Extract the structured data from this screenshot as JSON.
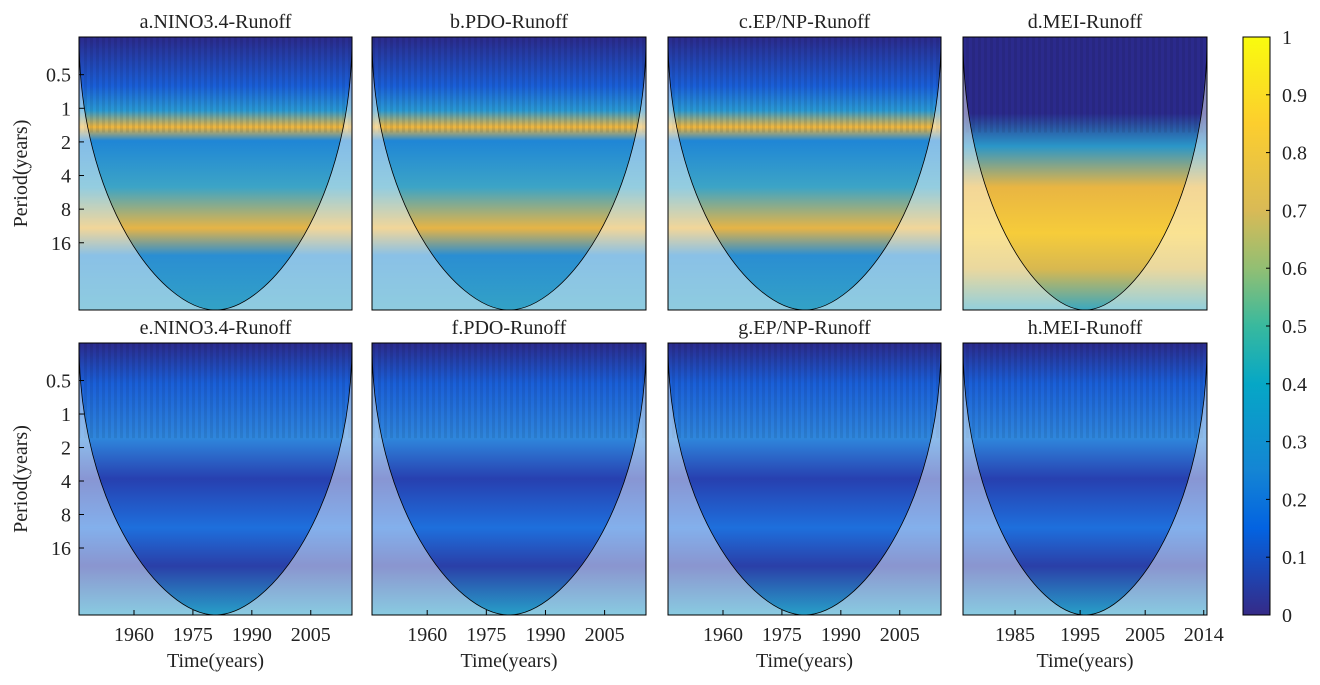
{
  "chart_data": [
    {
      "type": "heatmap",
      "title": "a.NINO3.4-Runoff",
      "ylabel": "Period(years)",
      "xlim": [
        1946,
        2015.5
      ],
      "ylim": [
        0.23,
        64
      ],
      "yticks": [
        0.5,
        1,
        2,
        4,
        8,
        16
      ],
      "log_y": true
    },
    {
      "type": "heatmap",
      "title": "b.PDO-Runoff",
      "xlim": [
        1946,
        2015.5
      ],
      "ylim": [
        0.23,
        64
      ],
      "log_y": true
    },
    {
      "type": "heatmap",
      "title": "c.EP/NP-Runoff",
      "xlim": [
        1946,
        2015.5
      ],
      "ylim": [
        0.23,
        64
      ],
      "log_y": true
    },
    {
      "type": "heatmap",
      "title": "d.MEI-Runoff",
      "xlim": [
        1977,
        2014.5
      ],
      "ylim": [
        0.23,
        64
      ],
      "log_y": true
    },
    {
      "type": "heatmap",
      "title": "e.NINO3.4-Runoff",
      "ylabel": "Period(years)",
      "xlabel": "Time(years)",
      "xlim": [
        1946,
        2015.5
      ],
      "xticks": [
        1960,
        1975,
        1990,
        2005
      ],
      "ylim": [
        0.23,
        64
      ],
      "yticks": [
        0.5,
        1,
        2,
        4,
        8,
        16
      ],
      "log_y": true
    },
    {
      "type": "heatmap",
      "title": "f.PDO-Runoff",
      "xlabel": "Time(years)",
      "xlim": [
        1946,
        2015.5
      ],
      "xticks": [
        1960,
        1975,
        1990,
        2005
      ],
      "ylim": [
        0.23,
        64
      ],
      "log_y": true
    },
    {
      "type": "heatmap",
      "title": "g.EP/NP-Runoff",
      "xlabel": "Time(years)",
      "xlim": [
        1946,
        2015.5
      ],
      "xticks": [
        1960,
        1975,
        1990,
        2005
      ],
      "ylim": [
        0.23,
        64
      ],
      "log_y": true
    },
    {
      "type": "heatmap",
      "title": "h.MEI-Runoff",
      "xlabel": "Time(years)",
      "xlim": [
        1977,
        2014.5
      ],
      "xticks": [
        1985,
        1995,
        2005,
        2014
      ],
      "ylim": [
        0.23,
        64
      ],
      "log_y": true
    },
    {
      "type": "colorbar",
      "ylim": [
        0,
        1
      ],
      "yticks": [
        0,
        0.1,
        0.2,
        0.3,
        0.4,
        0.5,
        0.6,
        0.7,
        0.8,
        0.9,
        1
      ]
    }
  ]
}
